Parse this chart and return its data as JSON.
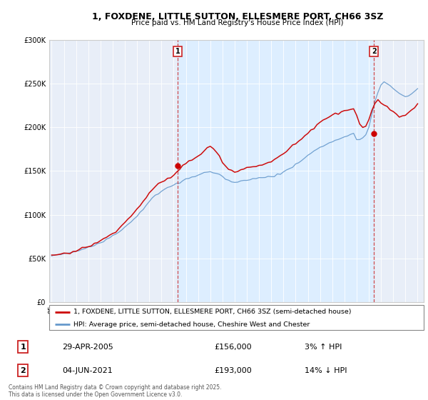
{
  "title1": "1, FOXDENE, LITTLE SUTTON, ELLESMERE PORT, CH66 3SZ",
  "title2": "Price paid vs. HM Land Registry's House Price Index (HPI)",
  "legend_line1": "1, FOXDENE, LITTLE SUTTON, ELLESMERE PORT, CH66 3SZ (semi-detached house)",
  "legend_line2": "HPI: Average price, semi-detached house, Cheshire West and Chester",
  "annotation1_label": "1",
  "annotation1_date": "29-APR-2005",
  "annotation1_price": "£156,000",
  "annotation1_hpi": "3% ↑ HPI",
  "annotation2_label": "2",
  "annotation2_date": "04-JUN-2021",
  "annotation2_price": "£193,000",
  "annotation2_hpi": "14% ↓ HPI",
  "footer": "Contains HM Land Registry data © Crown copyright and database right 2025.\nThis data is licensed under the Open Government Licence v3.0.",
  "sale1_year": 2005.33,
  "sale1_price": 156000,
  "sale2_year": 2021.42,
  "sale2_price": 193000,
  "red_color": "#cc0000",
  "blue_color": "#6699cc",
  "fill_color": "#ddeeff",
  "background_color": "#f0f4fa",
  "plot_bg_color": "#e8eef8",
  "annotation_box_color": "#cc2222",
  "ylim": [
    0,
    300000
  ],
  "xlim": [
    1994.8,
    2025.5
  ],
  "years_hpi": [
    1995,
    1995.25,
    1995.5,
    1995.75,
    1996,
    1996.25,
    1996.5,
    1996.75,
    1997,
    1997.25,
    1997.5,
    1997.75,
    1998,
    1998.25,
    1998.5,
    1998.75,
    1999,
    1999.25,
    1999.5,
    1999.75,
    2000,
    2000.25,
    2000.5,
    2000.75,
    2001,
    2001.25,
    2001.5,
    2001.75,
    2002,
    2002.25,
    2002.5,
    2002.75,
    2003,
    2003.25,
    2003.5,
    2003.75,
    2004,
    2004.25,
    2004.5,
    2004.75,
    2005,
    2005.25,
    2005.5,
    2005.75,
    2006,
    2006.25,
    2006.5,
    2006.75,
    2007,
    2007.25,
    2007.5,
    2007.75,
    2008,
    2008.25,
    2008.5,
    2008.75,
    2009,
    2009.25,
    2009.5,
    2009.75,
    2010,
    2010.25,
    2010.5,
    2010.75,
    2011,
    2011.25,
    2011.5,
    2011.75,
    2012,
    2012.25,
    2012.5,
    2012.75,
    2013,
    2013.25,
    2013.5,
    2013.75,
    2014,
    2014.25,
    2014.5,
    2014.75,
    2015,
    2015.25,
    2015.5,
    2015.75,
    2016,
    2016.25,
    2016.5,
    2016.75,
    2017,
    2017.25,
    2017.5,
    2017.75,
    2018,
    2018.25,
    2018.5,
    2018.75,
    2019,
    2019.25,
    2019.5,
    2019.75,
    2020,
    2020.25,
    2020.5,
    2020.75,
    2021,
    2021.25,
    2021.5,
    2021.75,
    2022,
    2022.25,
    2022.5,
    2022.75,
    2023,
    2023.25,
    2023.5,
    2023.75,
    2024,
    2024.25,
    2024.5,
    2024.75,
    2025
  ],
  "hpi_base": [
    53000,
    53500,
    54000,
    54200,
    55000,
    55500,
    56000,
    56800,
    58000,
    59000,
    60500,
    61500,
    63000,
    64000,
    65500,
    67000,
    68500,
    70000,
    72000,
    74000,
    76000,
    78000,
    80500,
    83000,
    86000,
    89000,
    92000,
    95500,
    99000,
    103000,
    107000,
    111000,
    115000,
    119000,
    122000,
    125000,
    127000,
    129000,
    131000,
    133000,
    134000,
    135500,
    137000,
    139000,
    141000,
    142500,
    143500,
    144500,
    146000,
    147500,
    148500,
    149000,
    149000,
    148500,
    147500,
    146000,
    144000,
    141500,
    139500,
    138000,
    137000,
    137500,
    138500,
    139500,
    140500,
    141000,
    141500,
    142000,
    142500,
    143000,
    143500,
    144000,
    144500,
    145000,
    146000,
    147500,
    149000,
    151000,
    153000,
    155500,
    158000,
    160500,
    163000,
    165500,
    168000,
    170500,
    173000,
    175500,
    177500,
    179000,
    180500,
    182000,
    183500,
    185000,
    186500,
    188000,
    189000,
    190000,
    191500,
    193000,
    185000,
    186000,
    188000,
    192000,
    200000,
    215000,
    230000,
    240000,
    248000,
    252000,
    250000,
    247000,
    244000,
    241000,
    238000,
    236000,
    235000,
    236000,
    238000,
    241000,
    245000
  ],
  "red_base": [
    53500,
    54000,
    54500,
    54800,
    55500,
    56000,
    56500,
    57500,
    59000,
    60000,
    61500,
    62500,
    64000,
    65000,
    66500,
    68000,
    70000,
    72000,
    74000,
    76500,
    79000,
    81500,
    84500,
    87500,
    91000,
    94500,
    98000,
    102000,
    106000,
    110500,
    115000,
    120000,
    124000,
    128000,
    131500,
    134500,
    136500,
    138500,
    141000,
    143000,
    145000,
    149000,
    153000,
    156000,
    159000,
    161500,
    163000,
    164500,
    166500,
    170000,
    174000,
    177000,
    178000,
    176000,
    172000,
    167000,
    161000,
    156000,
    152500,
    150500,
    149000,
    150000,
    151500,
    153000,
    154000,
    154500,
    155000,
    155500,
    156000,
    157000,
    158000,
    159500,
    161000,
    163000,
    165000,
    167500,
    170000,
    172500,
    175500,
    178500,
    181500,
    184000,
    187000,
    190000,
    193000,
    196500,
    200000,
    203500,
    206500,
    208500,
    210500,
    212500,
    214000,
    215500,
    217000,
    218500,
    219500,
    220000,
    221000,
    222500,
    215000,
    204000,
    200000,
    202000,
    210000,
    220000,
    228000,
    232000,
    228000,
    226000,
    224000,
    221000,
    218000,
    215000,
    213000,
    213500,
    215000,
    217000,
    220000,
    223000,
    227000
  ]
}
